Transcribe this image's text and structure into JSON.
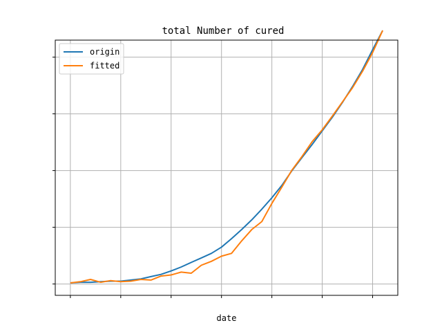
{
  "chart_data": {
    "type": "line",
    "title": "total Number of cured",
    "xlabel": "date",
    "ylabel": "",
    "grid": true,
    "legend_position": "top-left",
    "x": [
      0,
      1,
      2,
      3,
      4,
      5,
      6,
      7,
      8,
      9,
      10,
      11,
      12,
      13,
      14,
      15,
      16,
      17,
      18,
      19,
      20,
      21,
      22,
      23,
      24,
      25,
      26,
      27,
      28,
      29,
      30,
      31
    ],
    "xlim": [
      -1.5,
      32.5
    ],
    "ylim": [
      -2,
      43
    ],
    "series": [
      {
        "name": "origin",
        "color": "#1f77b4",
        "values": [
          0.2,
          0.3,
          0.3,
          0.4,
          0.5,
          0.5,
          0.7,
          0.9,
          1.3,
          1.7,
          2.3,
          3.0,
          3.8,
          4.6,
          5.4,
          6.5,
          8.0,
          9.6,
          11.3,
          13.2,
          15.2,
          17.4,
          20.0,
          22.3,
          24.6,
          27.0,
          29.4,
          32.0,
          34.8,
          37.8,
          41.3,
          44.7
        ]
      },
      {
        "name": "fitted",
        "color": "#ff7f0e",
        "values": [
          0.2,
          0.4,
          0.8,
          0.3,
          0.6,
          0.4,
          0.5,
          0.8,
          0.7,
          1.4,
          1.6,
          2.1,
          1.9,
          3.3,
          4.0,
          4.9,
          5.4,
          7.6,
          9.6,
          11.0,
          14.2,
          17.1,
          20.1,
          22.5,
          25.1,
          27.2,
          29.6,
          32.1,
          34.6,
          37.5,
          40.8,
          44.7
        ]
      }
    ]
  }
}
